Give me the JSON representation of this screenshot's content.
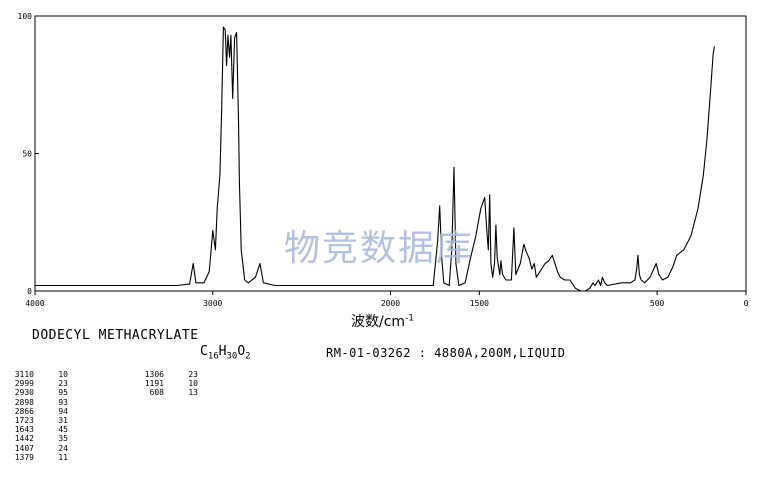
{
  "compound_name": "DODECYL METHACRYLATE",
  "formula": {
    "c": "C",
    "c_n": "16",
    "h": "H",
    "h_n": "30",
    "o": "O",
    "o_n": "2"
  },
  "spectrum_id": "RM-01-03262 : 4880A,200M,LIQUID",
  "watermark": "物竞数据库",
  "peak_table": [
    [
      [
        "3110",
        "10"
      ],
      [
        "2999",
        "23"
      ],
      [
        "2930",
        "95"
      ],
      [
        "2898",
        "93"
      ],
      [
        "2866",
        "94"
      ],
      [
        "1723",
        "31"
      ],
      [
        "1643",
        "45"
      ],
      [
        "1442",
        "35"
      ],
      [
        "1407",
        "24"
      ],
      [
        "1379",
        "11"
      ]
    ],
    [
      [
        "1306",
        "23"
      ],
      [
        "1191",
        "10"
      ],
      [
        "608",
        "13"
      ]
    ]
  ],
  "chart_data": {
    "type": "line",
    "title": "",
    "xlabel": "波数/cm",
    "xlabel_sup": "-1",
    "ylabel": "",
    "xlim": [
      4000,
      0
    ],
    "ylim": [
      0,
      100
    ],
    "x_ticks": [
      4000,
      3000,
      2000,
      1500,
      500,
      0
    ],
    "x_tick_labels": [
      "4000",
      "3000",
      "2000",
      "1500",
      "500",
      "0"
    ],
    "y_ticks": [
      0,
      50,
      100
    ],
    "y_tick_labels": [
      "0",
      "50",
      "100"
    ],
    "grid": false,
    "series": [
      {
        "points": [
          [
            4000,
            2
          ],
          [
            3500,
            2
          ],
          [
            3200,
            2
          ],
          [
            3130,
            2.5
          ],
          [
            3110,
            10
          ],
          [
            3095,
            3
          ],
          [
            3050,
            3
          ],
          [
            3020,
            7
          ],
          [
            3000,
            22
          ],
          [
            2985,
            15
          ],
          [
            2975,
            30
          ],
          [
            2960,
            42
          ],
          [
            2950,
            65
          ],
          [
            2940,
            96
          ],
          [
            2930,
            95
          ],
          [
            2922,
            82
          ],
          [
            2915,
            93
          ],
          [
            2905,
            85
          ],
          [
            2898,
            93
          ],
          [
            2888,
            70
          ],
          [
            2877,
            92
          ],
          [
            2866,
            94
          ],
          [
            2855,
            62
          ],
          [
            2850,
            40
          ],
          [
            2840,
            15
          ],
          [
            2820,
            4
          ],
          [
            2800,
            3
          ],
          [
            2760,
            5
          ],
          [
            2735,
            10
          ],
          [
            2715,
            3
          ],
          [
            2650,
            2
          ],
          [
            2000,
            2
          ],
          [
            1800,
            2
          ],
          [
            1760,
            2
          ],
          [
            1735,
            18
          ],
          [
            1723,
            31
          ],
          [
            1712,
            12
          ],
          [
            1700,
            3
          ],
          [
            1670,
            2
          ],
          [
            1655,
            15
          ],
          [
            1643,
            45
          ],
          [
            1632,
            10
          ],
          [
            1615,
            2
          ],
          [
            1580,
            3
          ],
          [
            1550,
            12
          ],
          [
            1520,
            20
          ],
          [
            1492,
            30
          ],
          [
            1470,
            34
          ],
          [
            1458,
            22
          ],
          [
            1450,
            15
          ],
          [
            1442,
            35
          ],
          [
            1435,
            10
          ],
          [
            1425,
            5
          ],
          [
            1415,
            10
          ],
          [
            1407,
            24
          ],
          [
            1400,
            12
          ],
          [
            1385,
            6
          ],
          [
            1379,
            11
          ],
          [
            1370,
            6
          ],
          [
            1350,
            4
          ],
          [
            1320,
            4
          ],
          [
            1306,
            23
          ],
          [
            1295,
            6
          ],
          [
            1270,
            10
          ],
          [
            1250,
            17
          ],
          [
            1235,
            14
          ],
          [
            1220,
            12
          ],
          [
            1205,
            8
          ],
          [
            1191,
            10
          ],
          [
            1180,
            5
          ],
          [
            1150,
            8
          ],
          [
            1130,
            10
          ],
          [
            1110,
            11
          ],
          [
            1090,
            13
          ],
          [
            1060,
            7
          ],
          [
            1045,
            5
          ],
          [
            1020,
            4
          ],
          [
            990,
            4
          ],
          [
            960,
            1
          ],
          [
            930,
            0
          ],
          [
            905,
            0
          ],
          [
            880,
            1
          ],
          [
            860,
            3
          ],
          [
            850,
            2
          ],
          [
            830,
            4
          ],
          [
            818,
            2
          ],
          [
            808,
            5
          ],
          [
            795,
            3
          ],
          [
            780,
            2
          ],
          [
            700,
            3
          ],
          [
            680,
            3
          ],
          [
            650,
            3
          ],
          [
            625,
            4
          ],
          [
            615,
            8
          ],
          [
            608,
            13
          ],
          [
            600,
            6
          ],
          [
            590,
            4
          ],
          [
            570,
            3
          ],
          [
            540,
            5
          ],
          [
            505,
            10
          ],
          [
            490,
            6
          ],
          [
            470,
            4
          ],
          [
            440,
            5
          ],
          [
            410,
            9
          ],
          [
            390,
            13
          ],
          [
            350,
            15
          ],
          [
            310,
            20
          ],
          [
            270,
            30
          ],
          [
            240,
            42
          ],
          [
            220,
            55
          ],
          [
            200,
            72
          ],
          [
            185,
            86
          ],
          [
            178,
            89
          ]
        ]
      }
    ]
  }
}
